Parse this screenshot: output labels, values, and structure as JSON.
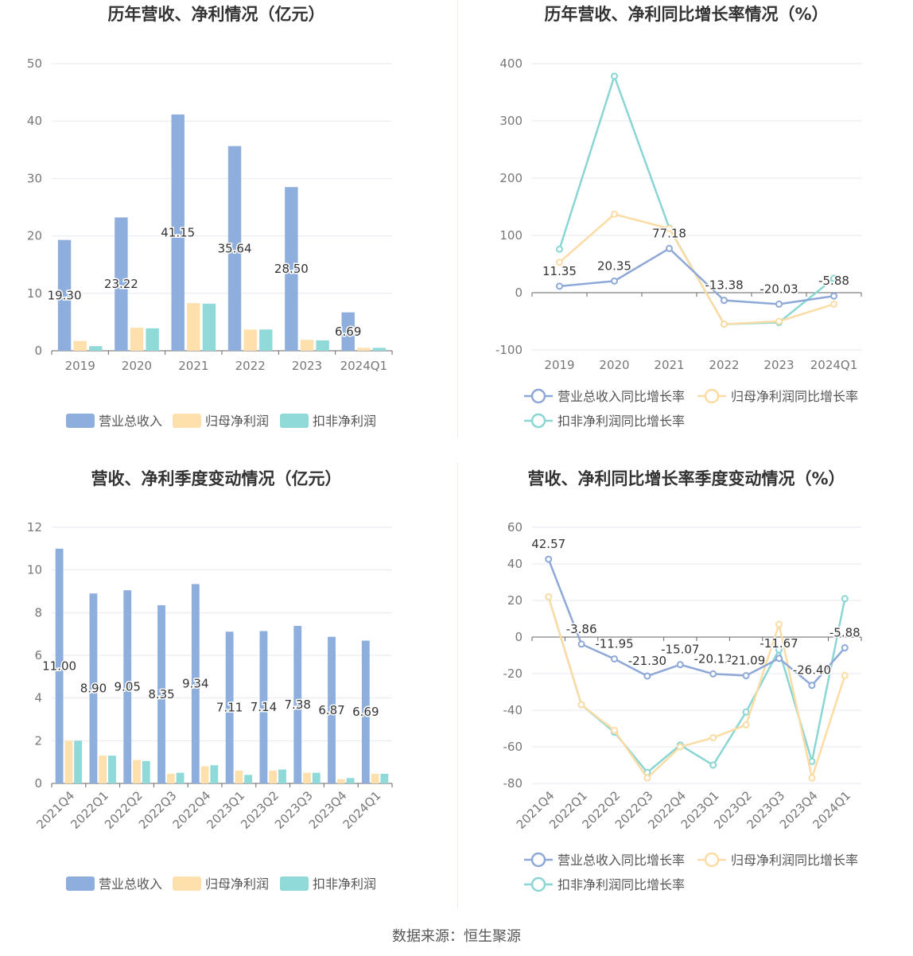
{
  "colors": {
    "revenue": "#8eaedd",
    "parent_profit": "#fde0ac",
    "deducted_profit": "#8fd9d9",
    "revenue_line": "#8ea8d8",
    "parent_line": "#fbdca4",
    "deducted_line": "#8ad6d4"
  },
  "legend_bar": [
    "营业总收入",
    "归母净利润",
    "扣非净利润"
  ],
  "legend_line": [
    "营业总收入同比增长率",
    "归母净利润同比增长率",
    "扣非净利润同比增长率"
  ],
  "footer": "数据来源：恒生聚源",
  "chart_data": [
    {
      "type": "bar",
      "title": "历年营收、净利情况（亿元）",
      "categories": [
        "2019",
        "2020",
        "2021",
        "2022",
        "2023",
        "2024Q1"
      ],
      "ylim": [
        0,
        50
      ],
      "yticks": [
        "0",
        "10",
        "20",
        "30",
        "40",
        "50"
      ],
      "series": [
        {
          "name": "营业总收入",
          "values": [
            19.3,
            23.22,
            41.15,
            35.64,
            28.5,
            6.69
          ]
        },
        {
          "name": "归母净利润",
          "values": [
            1.7,
            4.0,
            8.3,
            3.7,
            1.9,
            0.5
          ]
        },
        {
          "name": "扣非净利润",
          "values": [
            0.8,
            3.9,
            8.2,
            3.7,
            1.8,
            0.5
          ]
        }
      ],
      "labels": [
        "19.30",
        "23.22",
        "41.15",
        "35.64",
        "28.50",
        "6.69"
      ]
    },
    {
      "type": "line",
      "title": "历年营收、净利同比增长率情况（%）",
      "categories": [
        "2019",
        "2020",
        "2021",
        "2022",
        "2023",
        "2024Q1"
      ],
      "ylim": [
        -100,
        400
      ],
      "yticks": [
        "-100",
        "0",
        "100",
        "200",
        "300",
        "400"
      ],
      "series": [
        {
          "name": "营业总收入同比增长率",
          "values": [
            11.35,
            20.35,
            77.18,
            -13.38,
            -20.03,
            -5.88
          ]
        },
        {
          "name": "归母净利润同比增长率",
          "values": [
            53,
            137,
            112,
            -55,
            -50,
            -20
          ]
        },
        {
          "name": "扣非净利润同比增长率",
          "values": [
            76,
            378,
            113,
            -55,
            -52,
            25
          ]
        }
      ],
      "labels": [
        "11.35",
        "20.35",
        "77.18",
        "-13.38",
        "-20.03",
        "-5.88"
      ]
    },
    {
      "type": "bar",
      "title": "营收、净利季度变动情况（亿元）",
      "categories": [
        "2021Q4",
        "2022Q1",
        "2022Q2",
        "2022Q3",
        "2022Q4",
        "2023Q1",
        "2023Q2",
        "2023Q3",
        "2023Q4",
        "2024Q1"
      ],
      "ylim": [
        0,
        12
      ],
      "yticks": [
        "0",
        "2",
        "4",
        "6",
        "8",
        "10",
        "12"
      ],
      "series": [
        {
          "name": "营业总收入",
          "values": [
            11.0,
            8.9,
            9.05,
            8.35,
            9.34,
            7.11,
            7.14,
            7.38,
            6.87,
            6.69
          ]
        },
        {
          "name": "归母净利润",
          "values": [
            2.0,
            1.3,
            1.1,
            0.45,
            0.8,
            0.6,
            0.6,
            0.5,
            0.2,
            0.45
          ]
        },
        {
          "name": "扣非净利润",
          "values": [
            2.0,
            1.3,
            1.05,
            0.5,
            0.85,
            0.4,
            0.65,
            0.5,
            0.25,
            0.45
          ]
        }
      ],
      "labels": [
        "11.00",
        "8.90",
        "9.05",
        "8.35",
        "9.34",
        "7.11",
        "7.14",
        "7.38",
        "6.87",
        "6.69"
      ]
    },
    {
      "type": "line",
      "title": "营收、净利同比增长率季度变动情况（%）",
      "categories": [
        "2021Q4",
        "2022Q1",
        "2022Q2",
        "2022Q3",
        "2022Q4",
        "2023Q1",
        "2023Q2",
        "2023Q3",
        "2023Q4",
        "2024Q1"
      ],
      "ylim": [
        -80,
        60
      ],
      "yticks": [
        "-80",
        "-60",
        "-40",
        "-20",
        "0",
        "20",
        "40",
        "60"
      ],
      "series": [
        {
          "name": "营业总收入同比增长率",
          "values": [
            42.57,
            -3.86,
            -11.95,
            -21.3,
            -15.07,
            -20.12,
            -21.09,
            -11.67,
            -26.4,
            -5.88
          ]
        },
        {
          "name": "归母净利润同比增长率",
          "values": [
            22,
            -37,
            -51,
            -77,
            -60,
            -55,
            -48,
            7,
            -77,
            -21
          ]
        },
        {
          "name": "扣非净利润同比增长率",
          "values": [
            22,
            -37,
            -52,
            -74,
            -59,
            -70,
            -41,
            -7,
            -68,
            21
          ]
        }
      ],
      "labels": [
        "42.57",
        "-3.86",
        "-11.95",
        "-21.30",
        "-15.07",
        "-20.12",
        "-21.09",
        "-11.67",
        "-26.40",
        "-5.88"
      ]
    }
  ]
}
